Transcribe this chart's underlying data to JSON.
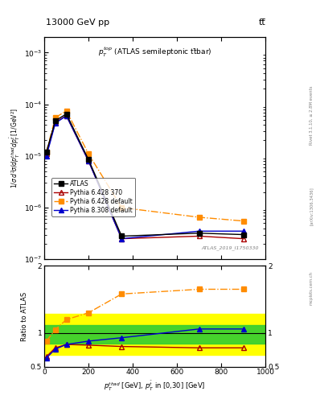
{
  "title_top": "13000 GeV pp",
  "title_right": "tt",
  "annotation": "ATLAS_2019_I1750330",
  "rivet_label": "Rivet 3.1.10, ≥ 2.8M events",
  "arxiv_label": "[arXiv:1306.3436]",
  "mcplots_label": "mcplots.cern.ch",
  "x_data": [
    10,
    50,
    100,
    200,
    350,
    700,
    900
  ],
  "atlas_y": [
    1.2e-05,
    4.8e-05,
    6.5e-05,
    8.5e-06,
    2.8e-07,
    3.2e-07,
    3e-07
  ],
  "pythia6_370_y": [
    1.1e-05,
    4.5e-05,
    6e-05,
    8e-06,
    2.5e-07,
    2.8e-07,
    2.5e-07
  ],
  "pythia6_default_y": [
    1.2e-05,
    5.5e-05,
    7.5e-05,
    1.1e-05,
    1e-06,
    6.5e-07,
    5.5e-07
  ],
  "pythia8_default_y": [
    1e-05,
    4.3e-05,
    6e-05,
    8e-06,
    2.5e-07,
    3.5e-07,
    3.5e-07
  ],
  "ratio_pythia6_370": [
    0.65,
    0.78,
    0.83,
    0.82,
    0.8,
    0.78,
    0.78
  ],
  "ratio_pythia6_default": [
    0.88,
    1.05,
    1.2,
    1.3,
    1.58,
    1.65,
    1.65
  ],
  "ratio_pythia8_default": [
    0.63,
    0.76,
    0.83,
    0.88,
    0.93,
    1.06,
    1.06
  ],
  "atlas_color": "#000000",
  "pythia6_370_color": "#aa0000",
  "pythia6_default_color": "#ff8c00",
  "pythia8_default_color": "#0000cc",
  "band_yellow_lo": 0.68,
  "band_yellow_hi": 1.28,
  "band_green_lo": 0.84,
  "band_green_hi": 1.12,
  "ylim_main": [
    1e-07,
    0.002
  ],
  "ylim_ratio": [
    0.5,
    2.0
  ],
  "xlim": [
    0,
    1000
  ],
  "ratio_yticks": [
    0.5,
    1.0,
    2.0
  ],
  "ratio_yticklabels": [
    "0.5",
    "1",
    "2"
  ]
}
